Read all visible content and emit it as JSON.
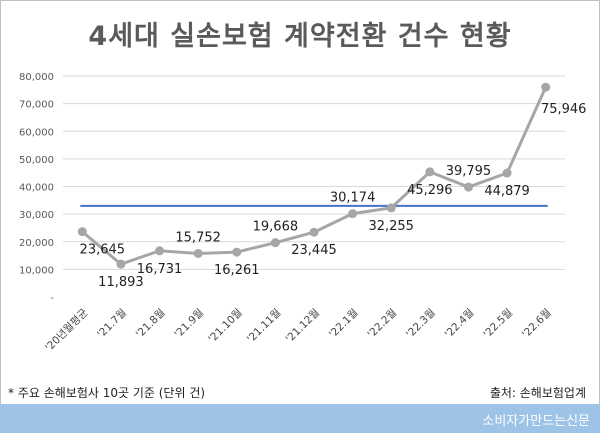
{
  "title": "4세대 실손보험 계약전환 건수 현황",
  "note": "* 주요 손해보험사 10곳 기준 (단위 건)",
  "source": "출처: 손해보험업계",
  "brand": "소비자가만드는신문",
  "chart_data": {
    "type": "line",
    "categories": [
      "'20년월평균",
      "'21.7월",
      "'21.8월",
      "'21.9월",
      "'21.10월",
      "'21.11월",
      "'21.12월",
      "'22.1월",
      "'22.2월",
      "'22.3월",
      "'22.4월",
      "'22.5월",
      "'22.6월"
    ],
    "values": [
      23645,
      11893,
      16731,
      15752,
      16261,
      19668,
      23445,
      30174,
      32255,
      45296,
      39795,
      44879,
      75946
    ],
    "value_labels": [
      "23,645",
      "11,893",
      "16,731",
      "15,752",
      "16,261",
      "19,668",
      "23,445",
      "30,174",
      "32,255",
      "45,296",
      "39,795",
      "44,879",
      "75,946"
    ],
    "y_ticks": [
      "-",
      "10,000",
      "20,000",
      "30,000",
      "40,000",
      "50,000",
      "60,000",
      "70,000",
      "80,000"
    ],
    "ylim": [
      0,
      80000
    ],
    "reference_line": 33000,
    "grid": true,
    "colors": {
      "series": "#a6a6a6",
      "reference": "#4472c4",
      "grid": "#d9d9d9"
    }
  }
}
